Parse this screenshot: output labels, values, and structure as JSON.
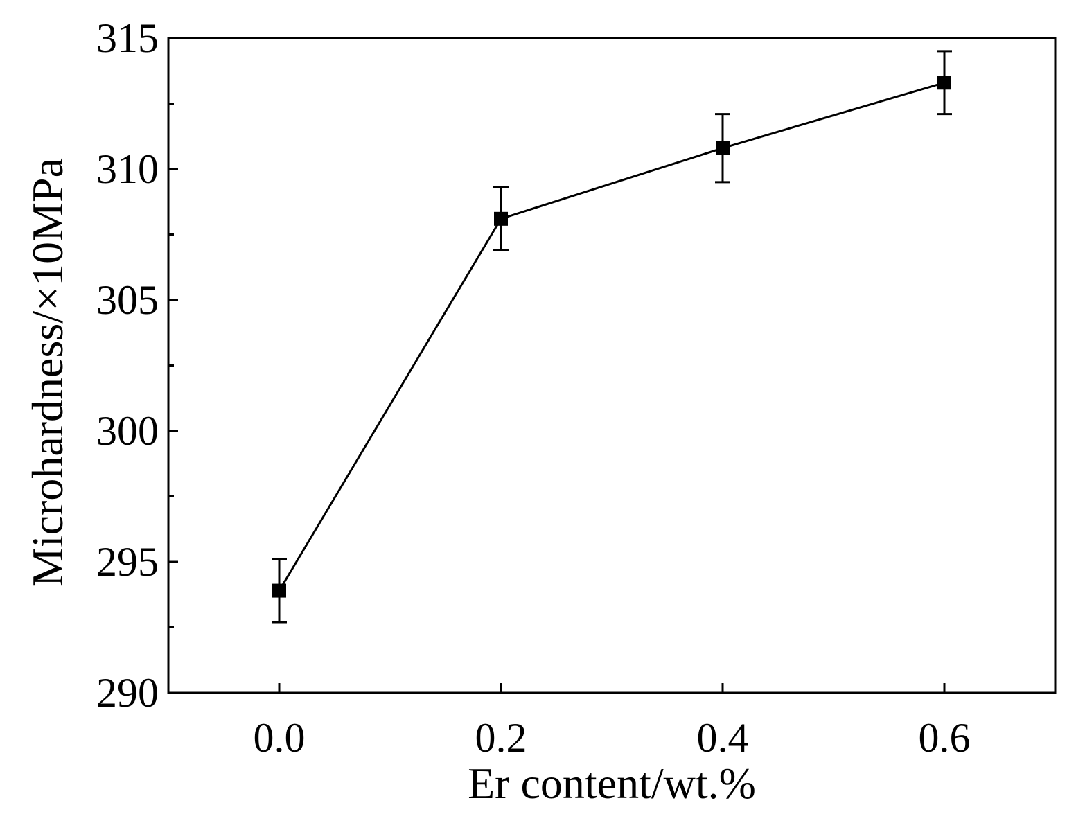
{
  "chart_data": {
    "type": "line",
    "title": "",
    "xlabel": "Er content/wt.%",
    "ylabel": "Microhardness/×10MPa",
    "xlim": [
      -0.1,
      0.7
    ],
    "ylim": [
      290,
      315
    ],
    "x_ticks": [
      0.0,
      0.2,
      0.4,
      0.6
    ],
    "x_tick_labels": [
      "0.0",
      "0.2",
      "0.4",
      "0.6"
    ],
    "y_ticks": [
      290,
      295,
      300,
      305,
      310,
      315
    ],
    "y_tick_labels": [
      "290",
      "295",
      "300",
      "305",
      "310",
      "315"
    ],
    "y_minor_step": 2.5,
    "grid": false,
    "legend": "none",
    "series": [
      {
        "x": [
          0.0,
          0.2,
          0.4,
          0.6
        ],
        "y": [
          293.9,
          308.1,
          310.8,
          313.3
        ],
        "error": [
          1.2,
          1.2,
          1.3,
          1.2
        ],
        "marker": "square",
        "color": "#000000"
      }
    ]
  }
}
